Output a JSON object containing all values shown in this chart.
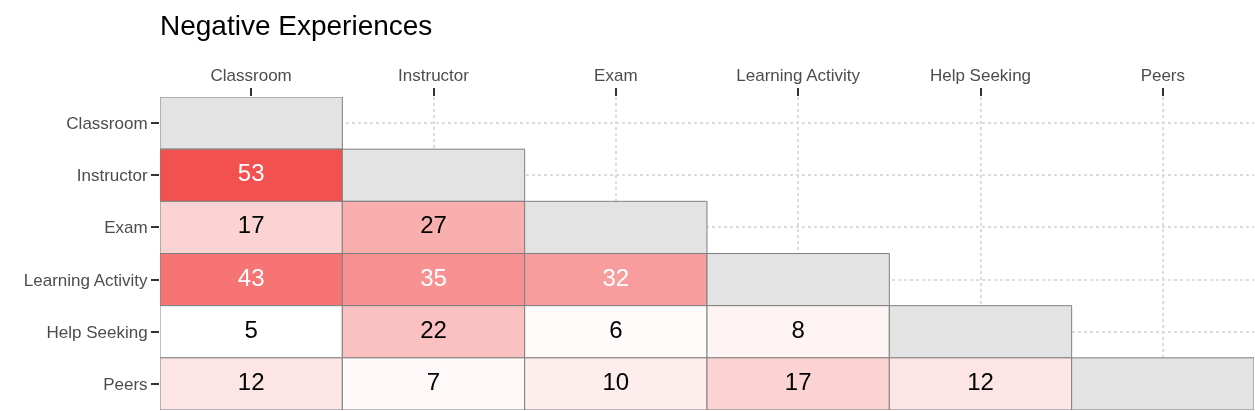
{
  "chart_data": {
    "type": "heatmap",
    "title": "Negative Experiences",
    "categories": [
      "Classroom",
      "Instructor",
      "Exam",
      "Learning Activity",
      "Help Seeking",
      "Peers"
    ],
    "y_categories": [
      "Classroom",
      "Instructor",
      "Exam",
      "Learning Activity",
      "Help Seeking",
      "Peers"
    ],
    "cells": [
      [
        null,
        null,
        null,
        null,
        null,
        null
      ],
      [
        53,
        null,
        null,
        null,
        null,
        null
      ],
      [
        17,
        27,
        null,
        null,
        null,
        null
      ],
      [
        43,
        35,
        32,
        null,
        null,
        null
      ],
      [
        5,
        22,
        6,
        8,
        null,
        null
      ],
      [
        12,
        7,
        10,
        17,
        12,
        null
      ]
    ],
    "color": "#f35050",
    "data_labels": true,
    "grid": true
  }
}
